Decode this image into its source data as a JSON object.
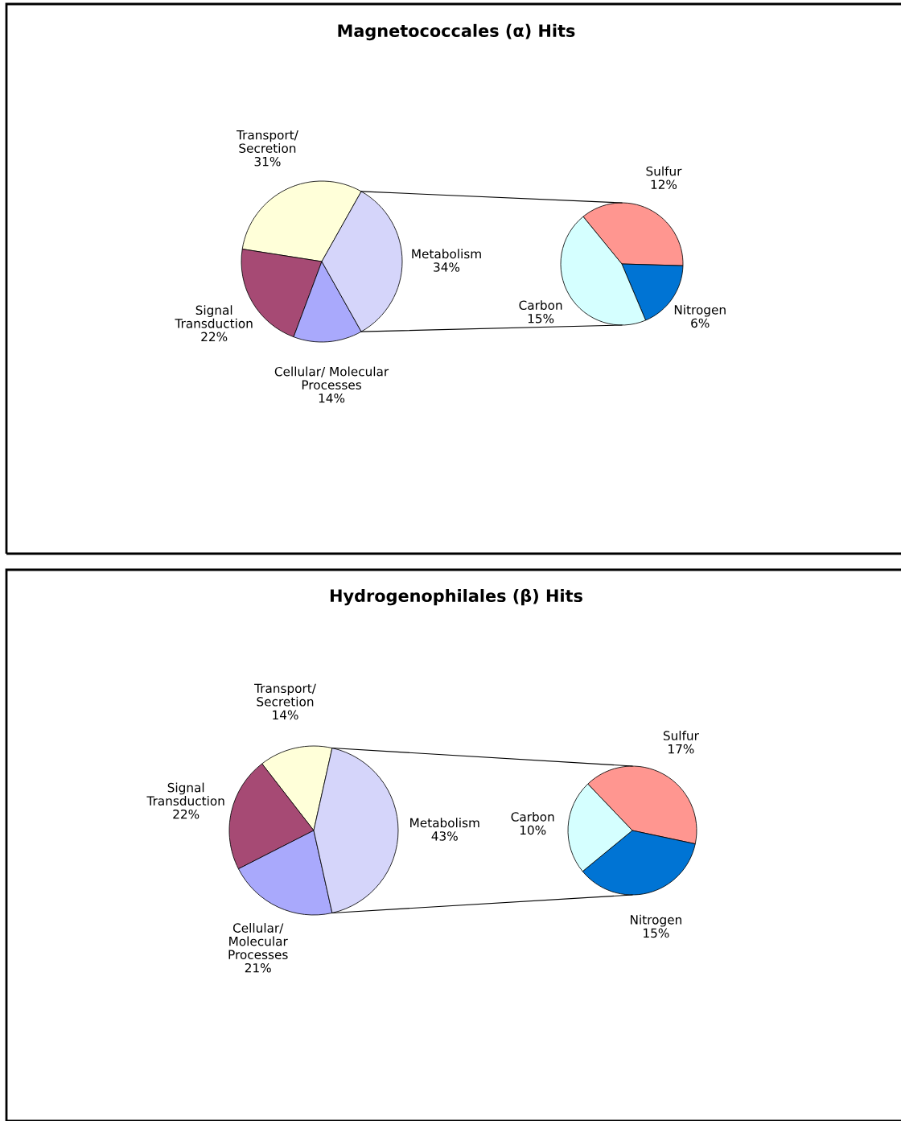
{
  "chart_data": [
    {
      "type": "pie",
      "title": "Magnetococcales (α) Hits",
      "categories": [
        "Transport/\nSecretion",
        "Signal\nTransduction",
        "Cellular/ Molecular\nProcesses",
        "Metabolism"
      ],
      "values": [
        31,
        22,
        14,
        34
      ],
      "value_labels": [
        "31%",
        "22%",
        "14%",
        "34%"
      ],
      "colors": [
        "#ffffd9",
        "#a64a74",
        "#a9a9fc",
        "#d5d5fa"
      ]
    },
    {
      "type": "pie",
      "categories": [
        "Sulfur",
        "Nitrogen",
        "Carbon"
      ],
      "values": [
        12,
        6,
        15
      ],
      "value_labels": [
        "12%",
        "6%",
        "15%"
      ],
      "colors": [
        "#ff9690",
        "#0074d4",
        "#d5ffff"
      ]
    },
    {
      "type": "pie",
      "title": "Hydrogenophilales (β) Hits",
      "categories": [
        "Transport/\nSecretion",
        "Signal\nTransduction",
        "Cellular/\nMolecular\nProcesses",
        "Metabolism"
      ],
      "values": [
        14,
        22,
        21,
        43
      ],
      "value_labels": [
        "14%",
        "22%",
        "21%",
        "43%"
      ],
      "colors": [
        "#ffffd9",
        "#a64a74",
        "#a9a9fc",
        "#d5d5fa"
      ]
    },
    {
      "type": "pie",
      "categories": [
        "Sulfur",
        "Nitrogen",
        "Carbon"
      ],
      "values": [
        17,
        15,
        10
      ],
      "value_labels": [
        "17%",
        "15%",
        "10%"
      ],
      "colors": [
        "#ff9690",
        "#0074d4",
        "#d5ffff"
      ]
    }
  ]
}
